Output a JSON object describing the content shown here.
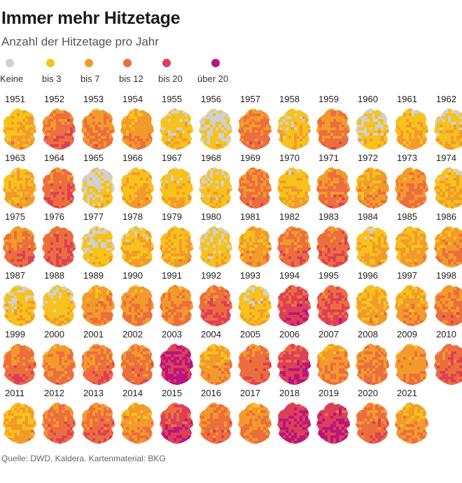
{
  "title": "Immer mehr Hitzetage",
  "subtitle": "Anzahl der Hitzetage pro Jahr",
  "source": "Quelle: DWD, Kaldera. Kartenmaterial: BKG",
  "legend": [
    {
      "label": "Keine",
      "color": "#d0d0d0"
    },
    {
      "label": "bis 3",
      "color": "#f7c21b"
    },
    {
      "label": "bis 7",
      "color": "#f39a2c"
    },
    {
      "label": "bis 12",
      "color": "#ec6e3e"
    },
    {
      "label": "bis 20",
      "color": "#dd3f58"
    },
    {
      "label": "über 20",
      "color": "#b8157f"
    }
  ],
  "chart_data": {
    "type": "heatmap",
    "title": "Immer mehr Hitzetage",
    "subtitle": "Anzahl der Hitzetage pro Jahr",
    "note": "Small-multiple maps of Germany, one per year 1951–2021; dominant heat-day class per year (0 = Keine, 1 = bis 3, 2 = bis 7, 3 = bis 12, 4 = bis 20, 5 = über 20)",
    "years": [
      {
        "year": "1951",
        "level": 1.6
      },
      {
        "year": "1952",
        "level": 3.0
      },
      {
        "year": "1953",
        "level": 2.5
      },
      {
        "year": "1954",
        "level": 2.0
      },
      {
        "year": "1955",
        "level": 1.0
      },
      {
        "year": "1956",
        "level": 0.6
      },
      {
        "year": "1957",
        "level": 2.6
      },
      {
        "year": "1958",
        "level": 1.1
      },
      {
        "year": "1959",
        "level": 2.6
      },
      {
        "year": "1960",
        "level": 0.9
      },
      {
        "year": "1961",
        "level": 1.5
      },
      {
        "year": "1962",
        "level": 1.1
      },
      {
        "year": "1963",
        "level": 1.6
      },
      {
        "year": "1964",
        "level": 3.1
      },
      {
        "year": "1965",
        "level": 0.6
      },
      {
        "year": "1966",
        "level": 1.5
      },
      {
        "year": "1967",
        "level": 1.2
      },
      {
        "year": "1968",
        "level": 0.9
      },
      {
        "year": "1969",
        "level": 2.7
      },
      {
        "year": "1970",
        "level": 1.4
      },
      {
        "year": "1971",
        "level": 2.7
      },
      {
        "year": "1972",
        "level": 2.0
      },
      {
        "year": "1973",
        "level": 2.4
      },
      {
        "year": "1974",
        "level": 1.4
      },
      {
        "year": "1975",
        "level": 2.9
      },
      {
        "year": "1976",
        "level": 3.3
      },
      {
        "year": "1977",
        "level": 0.8
      },
      {
        "year": "1978",
        "level": 1.3
      },
      {
        "year": "1979",
        "level": 1.6
      },
      {
        "year": "1980",
        "level": 0.9
      },
      {
        "year": "1981",
        "level": 1.9
      },
      {
        "year": "1982",
        "level": 2.9
      },
      {
        "year": "1983",
        "level": 3.2
      },
      {
        "year": "1984",
        "level": 1.4
      },
      {
        "year": "1985",
        "level": 1.6
      },
      {
        "year": "1986",
        "level": 2.2
      },
      {
        "year": "1987",
        "level": 1.1
      },
      {
        "year": "1988",
        "level": 1.1
      },
      {
        "year": "1989",
        "level": 2.2
      },
      {
        "year": "1990",
        "level": 2.4
      },
      {
        "year": "1991",
        "level": 2.5
      },
      {
        "year": "1992",
        "level": 3.2
      },
      {
        "year": "1993",
        "level": 1.2
      },
      {
        "year": "1994",
        "level": 4.0
      },
      {
        "year": "1995",
        "level": 3.5
      },
      {
        "year": "1996",
        "level": 1.6
      },
      {
        "year": "1997",
        "level": 2.0
      },
      {
        "year": "1998",
        "level": 2.7
      },
      {
        "year": "1999",
        "level": 3.0
      },
      {
        "year": "2000",
        "level": 2.6
      },
      {
        "year": "2001",
        "level": 2.9
      },
      {
        "year": "2002",
        "level": 2.8
      },
      {
        "year": "2003",
        "level": 4.6
      },
      {
        "year": "2004",
        "level": 2.0
      },
      {
        "year": "2005",
        "level": 3.0
      },
      {
        "year": "2006",
        "level": 4.1
      },
      {
        "year": "2007",
        "level": 2.4
      },
      {
        "year": "2008",
        "level": 2.6
      },
      {
        "year": "2009",
        "level": 2.2
      },
      {
        "year": "2010",
        "level": 3.2
      },
      {
        "year": "2011",
        "level": 1.6
      },
      {
        "year": "2012",
        "level": 3.0
      },
      {
        "year": "2013",
        "level": 3.0
      },
      {
        "year": "2014",
        "level": 2.2
      },
      {
        "year": "2015",
        "level": 4.0
      },
      {
        "year": "2016",
        "level": 2.8
      },
      {
        "year": "2017",
        "level": 2.4
      },
      {
        "year": "2018",
        "level": 4.5
      },
      {
        "year": "2019",
        "level": 4.4
      },
      {
        "year": "2020",
        "level": 3.0
      },
      {
        "year": "2021",
        "level": 2.1
      }
    ]
  }
}
